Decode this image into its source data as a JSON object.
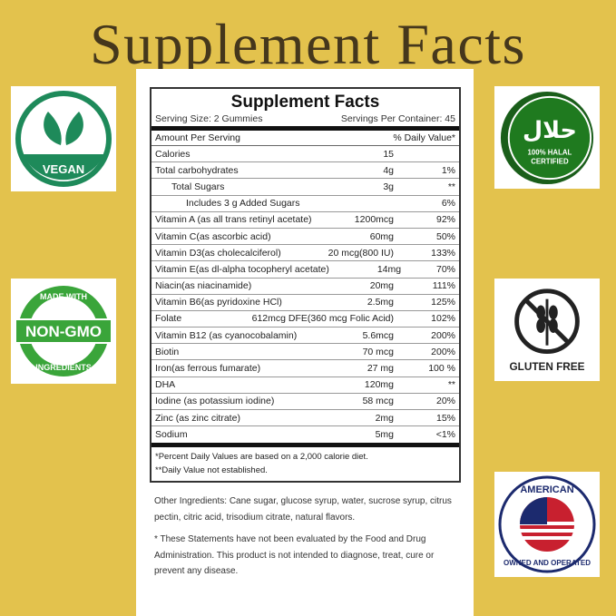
{
  "heading": "Supplement Facts",
  "label": {
    "title": "Supplement Facts",
    "serving_size": "Serving Size: 2 Gummies",
    "servings_per_container": "Servings Per Container: 45",
    "header": {
      "amount": "Amount Per Serving",
      "dv": "% Daily Value*"
    },
    "rows": [
      {
        "name": "Calories",
        "amount": "15",
        "dv": ""
      },
      {
        "name": "Total carbohydrates",
        "amount": "4g",
        "dv": "1%"
      },
      {
        "name": "Total Sugars",
        "amount": "3g",
        "dv": "**"
      },
      {
        "name": "Includes 3 g Added Sugars",
        "amount": "",
        "dv": "6%"
      },
      {
        "name": "Vitamin A (as all trans retinyl acetate)",
        "amount": "1200mcg",
        "dv": "92%"
      },
      {
        "name": "Vitamin C(as ascorbic acid)",
        "amount": "60mg",
        "dv": "50%"
      },
      {
        "name": "Vitamin D3(as cholecalciferol)",
        "amount": "20 mcg(800 IU)",
        "dv": "133%"
      },
      {
        "name": "Vitamin E(as dl-alpha tocopheryl acetate)",
        "amount": "14mg",
        "dv": "70%"
      },
      {
        "name": "Niacin(as niacinamide)",
        "amount": "20mg",
        "dv": "111%"
      },
      {
        "name": "Vitamin B6(as pyridoxine HCl)",
        "amount": "2.5mg",
        "dv": "125%"
      },
      {
        "name": "Folate",
        "amount": "612mcg DFE(360 mcg Folic Acid)",
        "dv": "102%"
      },
      {
        "name": "Vitamin B12 (as cyanocobalamin)",
        "amount": "5.6mcg",
        "dv": "200%"
      },
      {
        "name": "Biotin",
        "amount": "70 mcg",
        "dv": "200%"
      },
      {
        "name": "Iron(as ferrous fumarate)",
        "amount": "27 mg",
        "dv": "100 %"
      },
      {
        "name": "DHA",
        "amount": "120mg",
        "dv": "**"
      },
      {
        "name": "Iodine (as potassium iodine)",
        "amount": "58 mcg",
        "dv": "20%"
      },
      {
        "name": "Zinc (as zinc citrate)",
        "amount": "2mg",
        "dv": "15%"
      },
      {
        "name": "Sodium",
        "amount": "5mg",
        "dv": "<1%"
      }
    ],
    "footnote1": "*Percent Daily Values are based on a 2,000 calorie diet.",
    "footnote2": "**Daily Value not established."
  },
  "other_ingredients": "Other Ingredients: Cane sugar, glucose syrup, water, sucrose syrup, citrus pectin, citric acid, trisodium citrate, natural flavors.",
  "disclaimer": "* These Statements have not been evaluated by the Food and Drug Administration. This product is not intended to diagnose, treat, cure or prevent any disease.",
  "badges": {
    "vegan": "VEGAN",
    "halal_top": "100% HALAL",
    "halal_bottom": "CERTIFIED",
    "halal_arabic": "حلال",
    "nongmo_top": "MADE WITH",
    "nongmo_mid": "NON-GMO",
    "nongmo_bottom": "INGREDIENTS",
    "gluten": "GLUTEN FREE",
    "american_top": "AMERICAN",
    "american_bottom": "OWNED AND OPERATED"
  },
  "colors": {
    "background": "#e3c24d",
    "green": "#1e8a5a",
    "halal_green": "#1f7a1f",
    "nongmo_green": "#3aa53a"
  }
}
